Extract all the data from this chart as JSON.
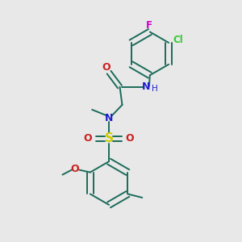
{
  "bg_color": "#e8e8e8",
  "bond_color": "#1a6b5a",
  "N_color": "#2020cc",
  "O_color": "#cc2020",
  "S_color": "#cccc00",
  "F_color": "#cc00cc",
  "Cl_color": "#33cc33",
  "figsize": [
    3.0,
    3.0
  ],
  "dpi": 100,
  "xlim": [
    0,
    10
  ],
  "ylim": [
    0,
    10
  ]
}
